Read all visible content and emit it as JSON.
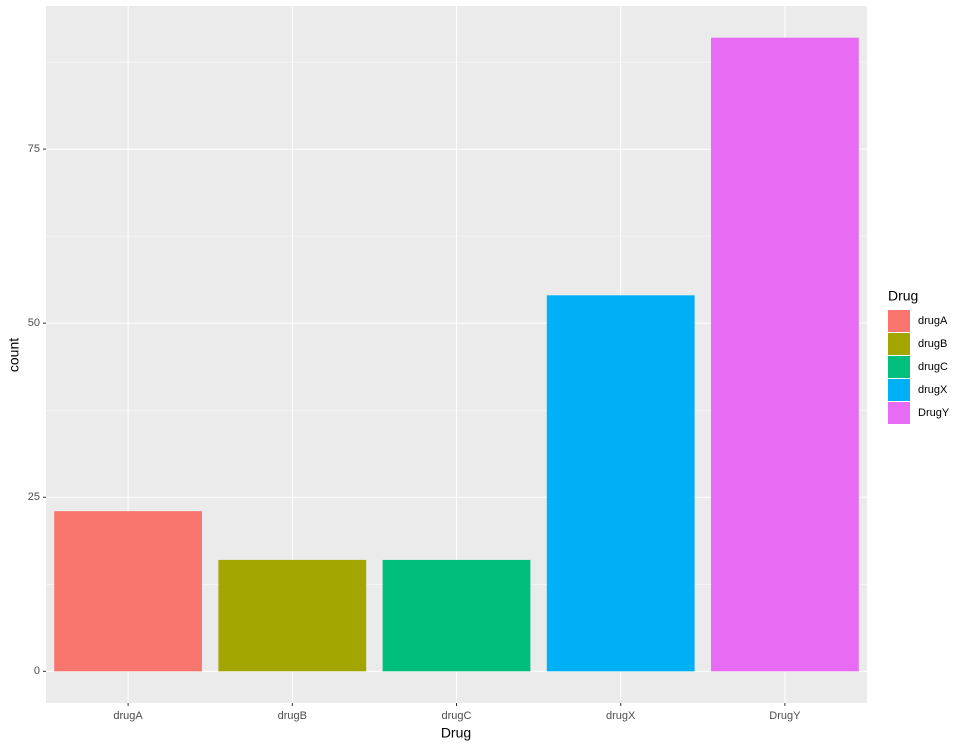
{
  "chart_data": {
    "type": "bar",
    "x_label": "Drug",
    "y_label": "count",
    "legend_title": "Drug",
    "categories": [
      "drugA",
      "drugB",
      "drugC",
      "drugX",
      "DrugY"
    ],
    "values": [
      23,
      16,
      16,
      54,
      91
    ],
    "colors": [
      "#F8766D",
      "#A3A500",
      "#00BF7D",
      "#00B0F6",
      "#E76BF3"
    ],
    "ylim": [
      -4.55,
      95.55
    ],
    "yticks": [
      0,
      25,
      50,
      75
    ],
    "grid": true
  }
}
